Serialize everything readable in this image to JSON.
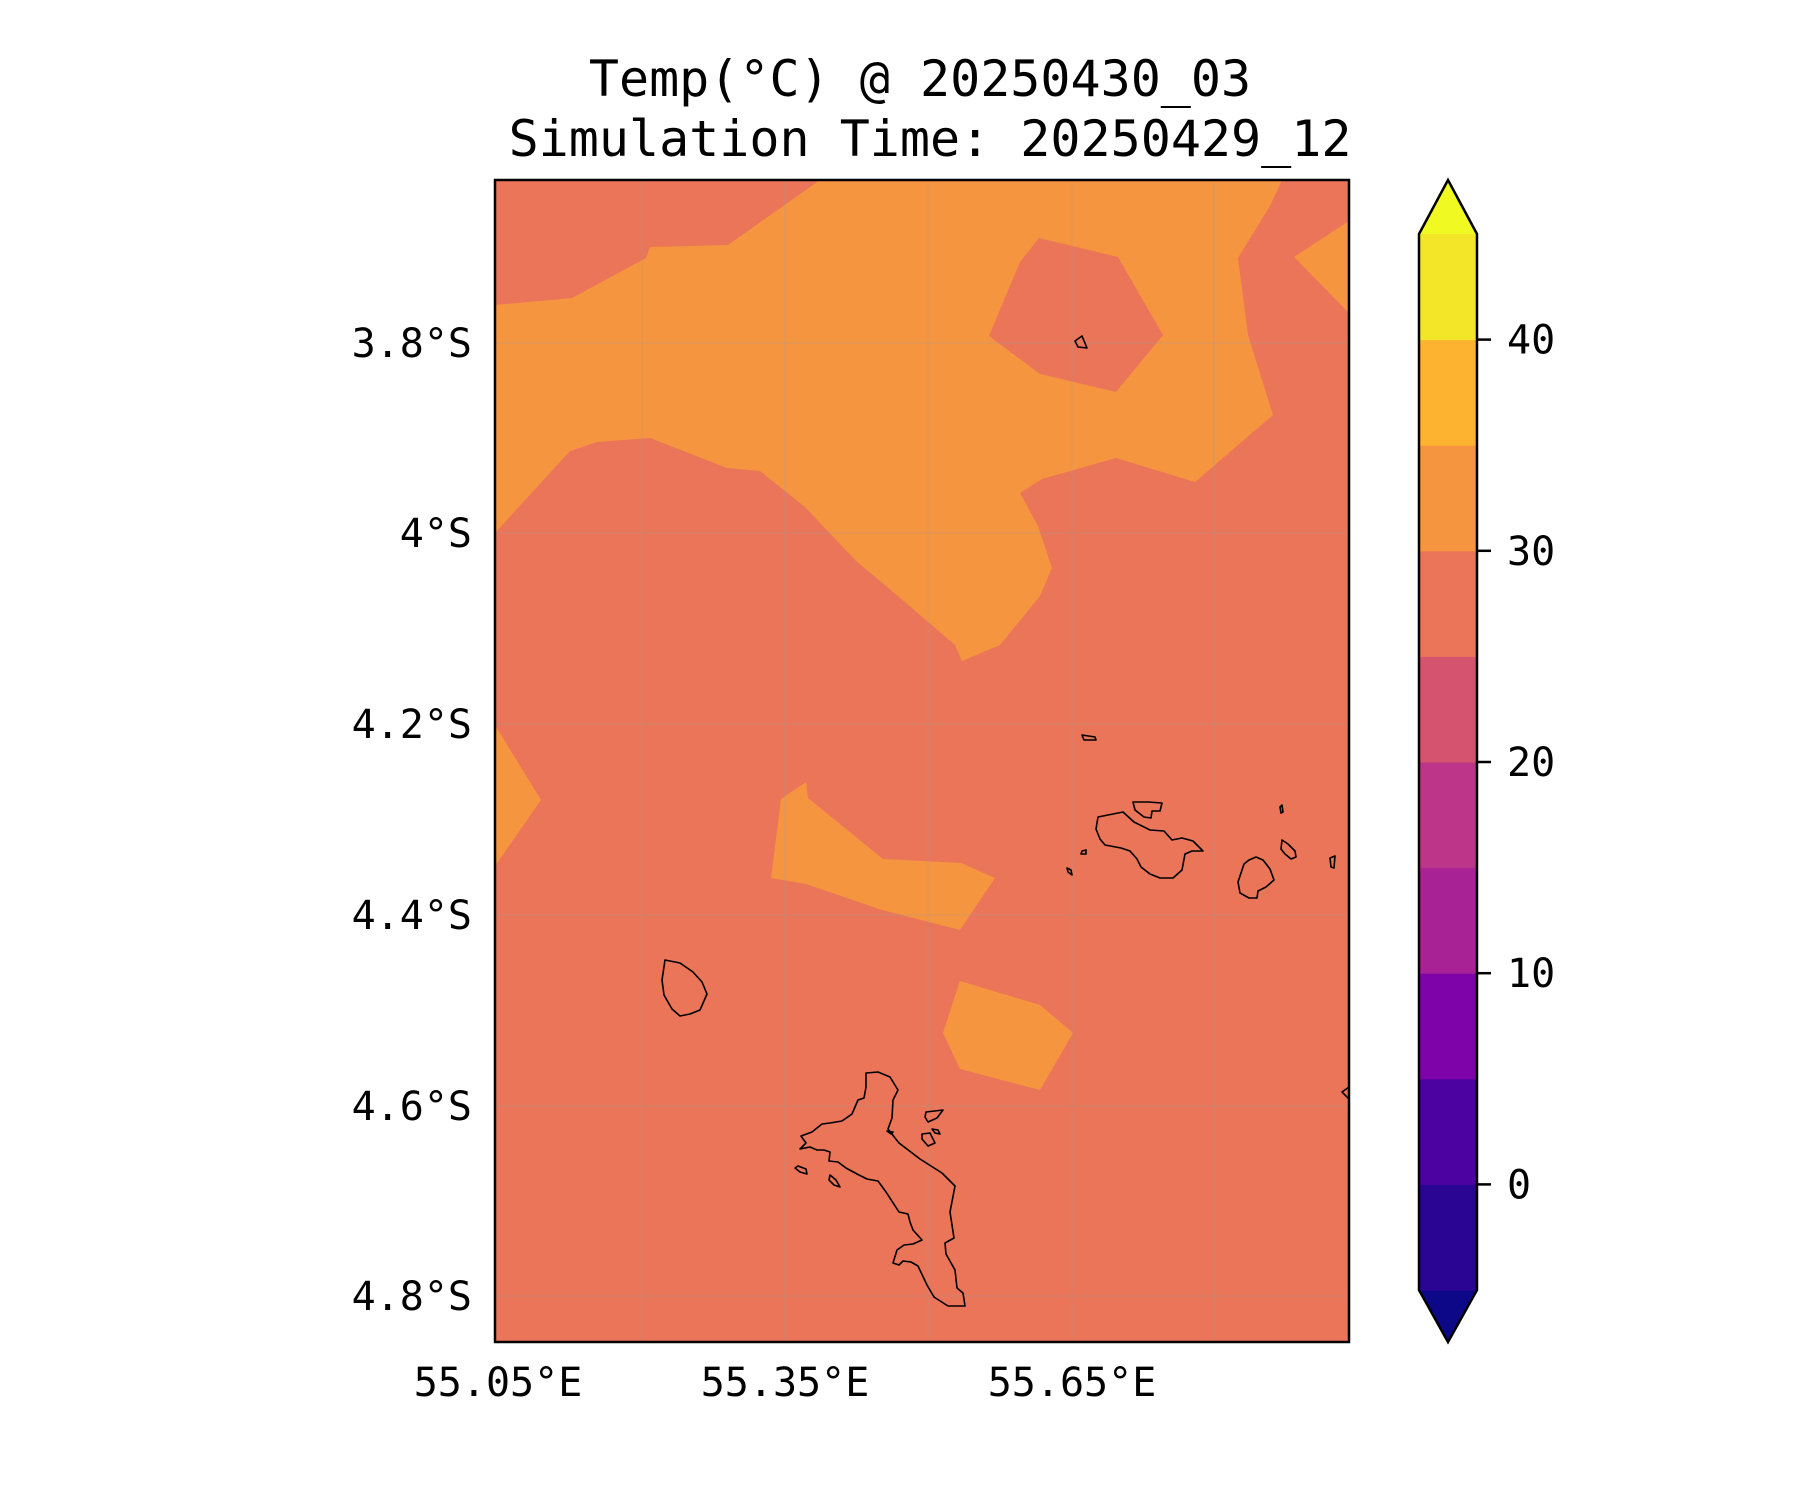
{
  "map": {
    "title_line1": "Temp(°C) @ 20250430_03",
    "title_line2": "Simulation Time: 20250429_12",
    "lon_ticks": [
      "55.05°E",
      "55.35°E",
      "55.65°E"
    ],
    "lat_ticks": [
      "3.8°S",
      "4°S",
      "4.2°S",
      "4.4°S",
      "4.6°S",
      "4.8°S"
    ],
    "colors": {
      "band_25_30": "#ea7558",
      "band_30_35": "#f69540"
    }
  },
  "colorbar": {
    "ticks": [
      "0",
      "10",
      "20",
      "30",
      "40"
    ],
    "levels": [
      -5,
      0,
      5,
      10,
      15,
      20,
      25,
      30,
      35,
      40,
      45
    ],
    "colors": [
      "#0d0887",
      "#2a0593",
      "#4c02a1",
      "#7e03a8",
      "#a82296",
      "#bc3588",
      "#d5536f",
      "#ea7558",
      "#f69540",
      "#fdb32f",
      "#f3e528",
      "#f0f921"
    ]
  }
}
